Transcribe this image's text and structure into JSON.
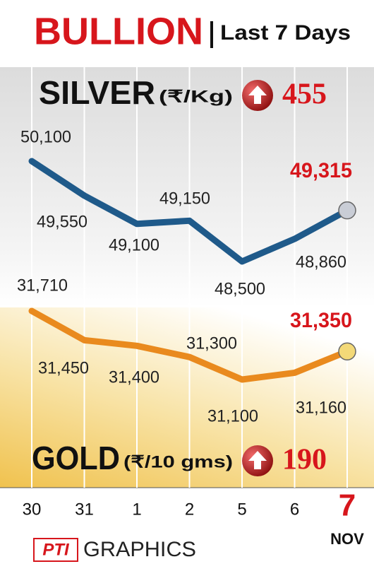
{
  "header": {
    "title": "BULLION",
    "subtitle": "Last 7 Days"
  },
  "chart_data": [
    {
      "type": "line",
      "label": "SILVER",
      "unit": "(₹/Kg)",
      "change": 455,
      "categories": [
        "30",
        "31",
        "1",
        "2",
        "5",
        "6",
        "7"
      ],
      "values": [
        50100,
        49550,
        49100,
        49150,
        48500,
        48860,
        49315
      ],
      "value_labels": [
        "50,100",
        "49,550",
        "49,100",
        "49,150",
        "48,500",
        "48,860",
        "49,315"
      ],
      "color": "#1f5a8a",
      "marker_color": "#c9cdd6"
    },
    {
      "type": "line",
      "label": "GOLD",
      "unit": "(₹/10 gms)",
      "change": 190,
      "values": [
        31710,
        31450,
        31400,
        31300,
        31100,
        31160,
        31350
      ],
      "value_labels": [
        "31,710",
        "31,450",
        "31,400",
        "31,300",
        "31,100",
        "31,160",
        "31,350"
      ],
      "color": "#e98a1e",
      "marker_color": "#f3d978"
    }
  ],
  "month": "NOV",
  "footer": {
    "logo": "PTI",
    "text": "GRAPHICS"
  }
}
